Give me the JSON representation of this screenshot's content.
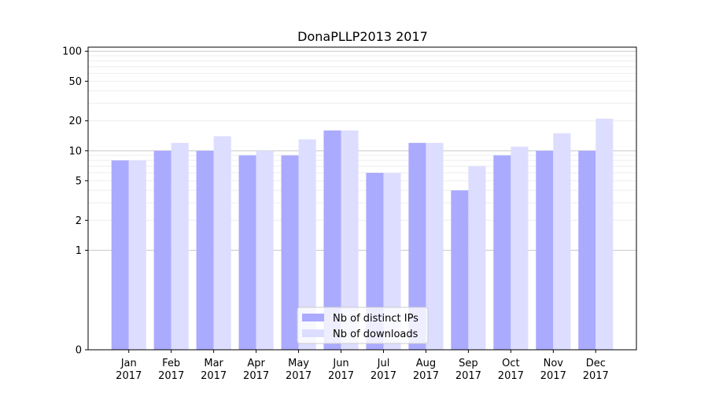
{
  "chart_data": {
    "type": "bar",
    "title": "DonaPLLP2013 2017",
    "xlabel": "",
    "ylabel": "",
    "y_scale": "symlog",
    "ylim": [
      0,
      110
    ],
    "y_ticks": [
      0,
      1,
      2,
      5,
      10,
      20,
      50,
      100
    ],
    "y_tick_labels": [
      "0",
      "1",
      "2",
      "5",
      "10",
      "20",
      "50",
      "100"
    ],
    "categories": [
      "Jan\n2017",
      "Feb\n2017",
      "Mar\n2017",
      "Apr\n2017",
      "May\n2017",
      "Jun\n2017",
      "Jul\n2017",
      "Aug\n2017",
      "Sep\n2017",
      "Oct\n2017",
      "Nov\n2017",
      "Dec\n2017"
    ],
    "series": [
      {
        "name": "Nb of distinct IPs",
        "color": "#aaaaff",
        "values": [
          8,
          10,
          10,
          9,
          9,
          16,
          6,
          12,
          4,
          9,
          10,
          10
        ]
      },
      {
        "name": "Nb of downloads",
        "color": "#ddddff",
        "values": [
          8,
          12,
          14,
          10,
          13,
          16,
          6,
          12,
          7,
          11,
          15,
          21
        ]
      }
    ],
    "grid": true,
    "legend_position": "bottom-center"
  }
}
